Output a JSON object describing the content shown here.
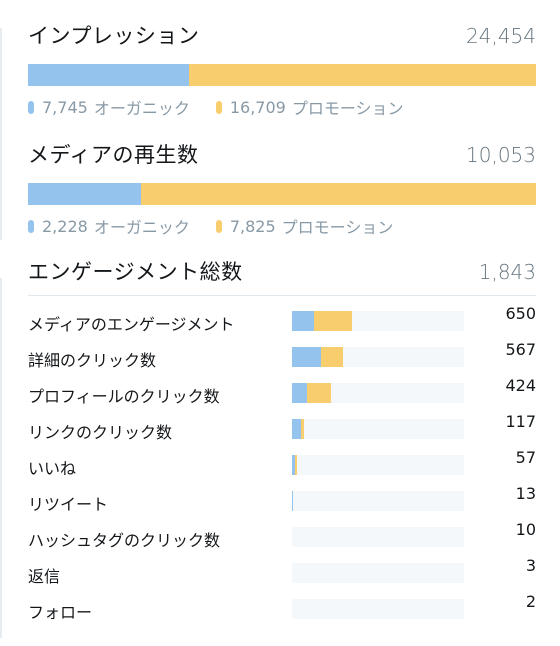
{
  "impressions": {
    "title": "インプレッション",
    "total": "24,454",
    "organic": {
      "value": 7745,
      "label": "7,745",
      "suffix": "オーガニック"
    },
    "promoted": {
      "value": 16709,
      "label": "16,709",
      "suffix": "プロモーション"
    }
  },
  "media_views": {
    "title": "メディアの再生数",
    "total": "10,053",
    "organic": {
      "value": 2228,
      "label": "2,228",
      "suffix": "オーガニック"
    },
    "promoted": {
      "value": 7825,
      "label": "7,825",
      "suffix": "プロモーション"
    }
  },
  "engagements": {
    "title": "エンゲージメント総数",
    "total": "1,843",
    "rows": [
      {
        "label": "メディアのエンゲージメント",
        "value": "650",
        "organic": 0.13,
        "promoted": 0.22
      },
      {
        "label": "詳細のクリック数",
        "value": "567",
        "organic": 0.17,
        "promoted": 0.13
      },
      {
        "label": "プロフィールのクリック数",
        "value": "424",
        "organic": 0.09,
        "promoted": 0.14
      },
      {
        "label": "リンクのクリック数",
        "value": "117",
        "organic": 0.05,
        "promoted": 0.015
      },
      {
        "label": "いいね",
        "value": "57",
        "organic": 0.02,
        "promoted": 0.01
      },
      {
        "label": "リツイート",
        "value": "13",
        "organic": 0.007,
        "promoted": 0.0
      },
      {
        "label": "ハッシュタグのクリック数",
        "value": "10",
        "organic": 0.0,
        "promoted": 0.0
      },
      {
        "label": "返信",
        "value": "3",
        "organic": 0.0,
        "promoted": 0.0
      },
      {
        "label": "フォロー",
        "value": "2",
        "organic": 0.0,
        "promoted": 0.0
      }
    ]
  },
  "colors": {
    "organic": "#94c4ee",
    "promoted": "#f8cd6d"
  }
}
